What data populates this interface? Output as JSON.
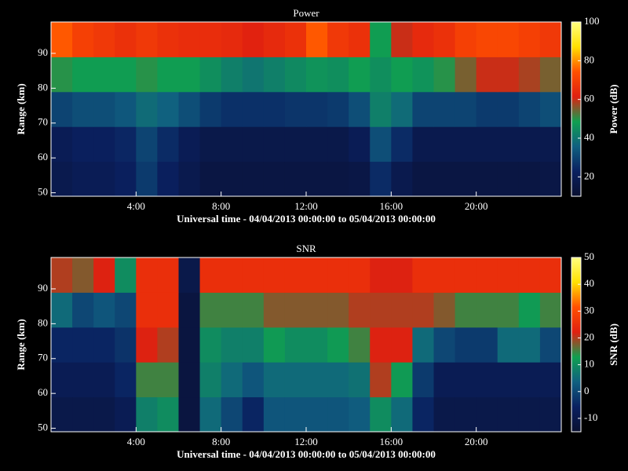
{
  "chart_data": [
    {
      "type": "heatmap",
      "title": "Power",
      "xlabel": "Universal time - 04/04/2013 00:00:00 to 05/04/2013 00:00:00",
      "ylabel": "Range (km)",
      "colorbar_label": "Power (dB)",
      "xbins": [
        0,
        1,
        2,
        3,
        4,
        5,
        6,
        7,
        8,
        9,
        10,
        11,
        12,
        13,
        14,
        15,
        16,
        17,
        18,
        19,
        20,
        21,
        22,
        23,
        24
      ],
      "ybins": [
        49,
        59,
        69,
        79,
        89,
        99
      ],
      "z": [
        [
          18,
          20,
          20,
          22,
          28,
          22,
          18,
          15,
          15,
          15,
          15,
          15,
          15,
          15,
          16,
          25,
          18,
          15,
          15,
          15,
          15,
          15,
          15,
          16
        ],
        [
          20,
          22,
          22,
          24,
          30,
          25,
          20,
          17,
          17,
          17,
          17,
          17,
          17,
          17,
          20,
          32,
          25,
          18,
          18,
          18,
          18,
          18,
          18,
          18
        ],
        [
          30,
          32,
          32,
          34,
          38,
          36,
          32,
          28,
          26,
          26,
          26,
          27,
          27,
          28,
          32,
          42,
          38,
          30,
          30,
          30,
          28,
          28,
          30,
          32
        ],
        [
          50,
          48,
          48,
          48,
          50,
          48,
          48,
          45,
          42,
          40,
          42,
          44,
          46,
          45,
          48,
          45,
          48,
          46,
          50,
          55,
          60,
          60,
          58,
          55
        ],
        [
          75,
          70,
          68,
          66,
          68,
          66,
          65,
          65,
          64,
          62,
          64,
          66,
          75,
          68,
          66,
          48,
          60,
          64,
          66,
          70,
          72,
          72,
          70,
          68
        ]
      ],
      "xlim": [
        0,
        24
      ],
      "xticks": [
        {
          "value": 4,
          "label": "4:00"
        },
        {
          "value": 8,
          "label": "8:00"
        },
        {
          "value": 12,
          "label": "12:00"
        },
        {
          "value": 16,
          "label": "16:00"
        },
        {
          "value": 20,
          "label": "20:00"
        }
      ],
      "ylim": [
        49,
        99
      ],
      "yticks": [
        50,
        60,
        70,
        80,
        90
      ],
      "zlim": [
        10,
        100
      ],
      "zticks": [
        20,
        40,
        60,
        80,
        100
      ],
      "colormap": [
        "#0a1030",
        "#0a2060",
        "#106080",
        "#10a050",
        "#e02010",
        "#ff5000",
        "#ffe000",
        "#ffff80"
      ]
    },
    {
      "type": "heatmap",
      "title": "SNR",
      "xlabel": "Universal time - 04/04/2013 00:00:00 to 05/04/2013 00:00:00",
      "ylabel": "Range (km)",
      "colorbar_label": "SNR (dB)",
      "xbins": [
        0,
        1,
        2,
        3,
        4,
        5,
        6,
        7,
        8,
        9,
        10,
        11,
        12,
        13,
        14,
        15,
        16,
        17,
        18,
        19,
        20,
        21,
        22,
        23,
        24
      ],
      "ybins": [
        49,
        59,
        69,
        79,
        89,
        99
      ],
      "z": [
        [
          -10,
          -10,
          -10,
          -8,
          8,
          10,
          -12,
          5,
          0,
          -5,
          2,
          2,
          2,
          2,
          3,
          10,
          5,
          -5,
          -10,
          -10,
          -10,
          -10,
          -10,
          -10
        ],
        [
          -8,
          -8,
          -8,
          -5,
          15,
          15,
          -12,
          8,
          5,
          2,
          5,
          5,
          5,
          5,
          6,
          20,
          12,
          -2,
          -8,
          -8,
          -8,
          -8,
          -8,
          -8
        ],
        [
          -5,
          -5,
          -5,
          -3,
          22,
          20,
          -12,
          10,
          8,
          8,
          12,
          10,
          10,
          12,
          15,
          22,
          22,
          5,
          0,
          -2,
          -2,
          5,
          5,
          0
        ],
        [
          5,
          0,
          2,
          0,
          25,
          25,
          -12,
          15,
          15,
          15,
          18,
          18,
          18,
          18,
          20,
          20,
          20,
          20,
          18,
          15,
          15,
          15,
          12,
          15
        ],
        [
          20,
          18,
          22,
          10,
          25,
          25,
          -10,
          25,
          25,
          25,
          25,
          25,
          25,
          25,
          25,
          22,
          22,
          25,
          25,
          25,
          25,
          25,
          25,
          25
        ]
      ],
      "xlim": [
        0,
        24
      ],
      "xticks": [
        {
          "value": 4,
          "label": "4:00"
        },
        {
          "value": 8,
          "label": "8:00"
        },
        {
          "value": 12,
          "label": "12:00"
        },
        {
          "value": 16,
          "label": "16:00"
        },
        {
          "value": 20,
          "label": "20:00"
        }
      ],
      "ylim": [
        49,
        99
      ],
      "yticks": [
        50,
        60,
        70,
        80,
        90
      ],
      "zlim": [
        -15,
        50
      ],
      "zticks": [
        -10,
        0,
        10,
        20,
        30,
        40,
        50
      ],
      "colormap": [
        "#0a1030",
        "#0a2060",
        "#106080",
        "#10a050",
        "#e02010",
        "#ff5000",
        "#ffe000",
        "#ffff80"
      ]
    }
  ]
}
